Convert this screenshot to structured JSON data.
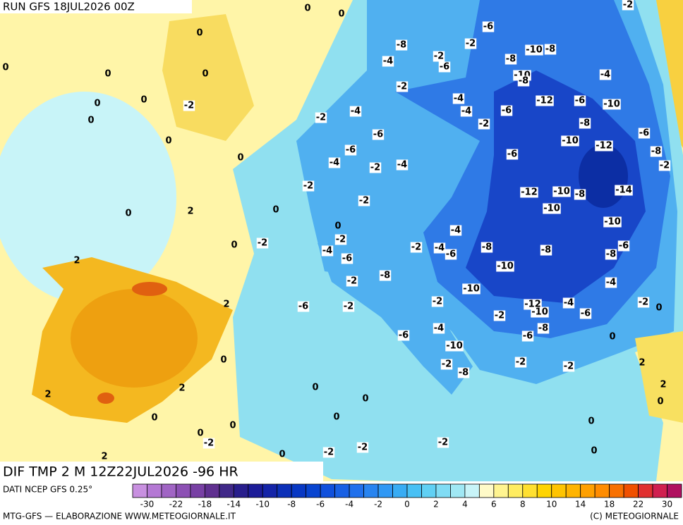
{
  "header": {
    "run": "RUN GFS 18JUL2026 00Z",
    "field": "DIF TMP 2 M 12Z22JUL2026 -96 HR"
  },
  "map": {
    "labels": [
      0,
      0,
      0,
      0,
      0,
      0,
      0,
      0,
      0,
      -2,
      0,
      0,
      0,
      2,
      0,
      0,
      2,
      2,
      0,
      2,
      2,
      0,
      2,
      0,
      0,
      -2,
      0,
      -2,
      -2,
      0,
      0,
      0,
      -2,
      -8,
      -4,
      -2,
      -6,
      -2,
      -6,
      -8,
      -10,
      -8,
      -10,
      -8,
      -4,
      -2,
      -2,
      -4,
      -6,
      -4,
      -4,
      -2,
      -6,
      -12,
      -6,
      -10,
      -8,
      -6,
      -10,
      -12,
      -8,
      -2,
      -6,
      -4,
      -2,
      -4,
      -6,
      -2,
      -2,
      -12,
      -10,
      -8,
      -14,
      -10,
      -10,
      0,
      -2,
      -2,
      -4,
      -6,
      -4,
      -2,
      -4,
      -6,
      -8,
      -8,
      -8,
      -6,
      -10,
      -8,
      -2,
      -10,
      -4,
      -6,
      -2,
      -2,
      -2,
      -12,
      -10,
      -4,
      -6,
      -2,
      0,
      -8,
      -6,
      -4,
      -6,
      -10,
      -2,
      -8,
      -2,
      -2,
      2,
      0,
      2,
      0,
      0,
      0,
      -2
    ]
  },
  "legend": {
    "source": "DATI NCEP GFS 0.25°",
    "colors": [
      "#c890e0",
      "#b478d4",
      "#a064c4",
      "#8c50b4",
      "#7840a4",
      "#603090",
      "#402888",
      "#281e8c",
      "#1c1c98",
      "#1424a8",
      "#0c30b8",
      "#0838c4",
      "#0844d0",
      "#1050dc",
      "#1860e4",
      "#2070ec",
      "#2884f0",
      "#3098f4",
      "#38acf4",
      "#48c0f4",
      "#60d0f4",
      "#80dcf4",
      "#a0e8f4",
      "#c8f4f8",
      "#fffac8",
      "#fff490",
      "#ffec60",
      "#ffe030",
      "#ffd400",
      "#ffc400",
      "#ffb400",
      "#ffa000",
      "#ff8c00",
      "#f87000",
      "#f05000",
      "#e03030",
      "#d02050",
      "#b01060"
    ],
    "ticks": [
      -30,
      -22,
      -18,
      -14,
      -10,
      -8,
      -6,
      -4,
      -2,
      0,
      2,
      4,
      6,
      8,
      10,
      14,
      18,
      22,
      30
    ]
  },
  "footer": {
    "credit": "MTG-GFS — ELABORAZIONE WWW.METEOGIORNALE.IT",
    "copyright": "(C) METEOGIORNALE"
  }
}
